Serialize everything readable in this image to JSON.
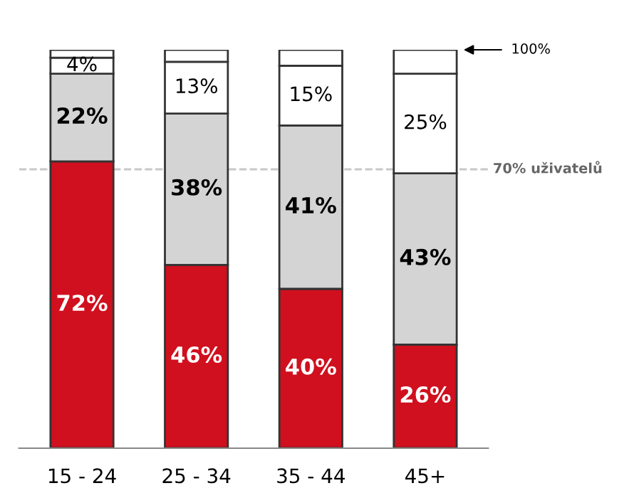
{
  "chart_data": {
    "type": "bar",
    "stacked": true,
    "categories": [
      "15 - 24",
      "25 - 34",
      "35 - 44",
      "45+"
    ],
    "series": [
      {
        "color": "#d0101e",
        "values": [
          72,
          46,
          40,
          26
        ],
        "value_labels": [
          "72%",
          "46%",
          "40%",
          "26%"
        ]
      },
      {
        "color": "#d4d4d4",
        "values": [
          22,
          38,
          41,
          43
        ],
        "value_labels": [
          "22%",
          "38%",
          "41%",
          "43%"
        ]
      },
      {
        "color": "#ffffff",
        "values": [
          4,
          13,
          15,
          25
        ],
        "value_labels": [
          "4%",
          "13%",
          "15%",
          "25%"
        ]
      },
      {
        "color": "#ffffff",
        "values": [
          2,
          3,
          4,
          6
        ],
        "value_labels": [
          null,
          null,
          null,
          null
        ]
      }
    ],
    "ylim": [
      0,
      100
    ],
    "tick_labels": "x",
    "grid": false,
    "legend": false,
    "ref_lines": [
      {
        "axis": "y",
        "value": 70,
        "label": "70% uživatelů",
        "color": "#c8c8c8",
        "line_style": "dashed"
      }
    ],
    "annotations": [
      "100%"
    ]
  }
}
